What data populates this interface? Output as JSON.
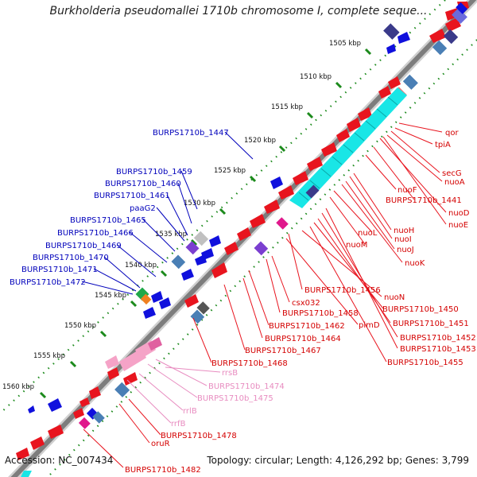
{
  "title": "Burkholderia pseudomallei 1710b chromosome I, complete seque...",
  "accession": "Accession: NC_007434",
  "topology": "Topology: circular; Length: 4,126,292 bp; Genes: 3,799",
  "colors": {
    "forward_gene": "#e8141e",
    "reverse_gene": "#1010dd",
    "rna": "#f5a3c7",
    "cyan_block": "#19e6e6",
    "backbone": "#808080",
    "tick": "#1c8a1c",
    "blue_label": "#0000bb",
    "red_label": "#d40000",
    "pink_label": "#e88cc0"
  },
  "ticks": [
    "1505 kbp",
    "1510 kbp",
    "1515 kbp",
    "1520 kbp",
    "1525 kbp",
    "1530 kbp",
    "1535 kbp",
    "1540 kbp",
    "1545 kbp",
    "1550 kbp",
    "1555 kbp",
    "1560 kbp"
  ],
  "blue_labels": [
    "BURPS1710b_1447",
    "BURPS1710b_1459",
    "BURPS1710b_1460",
    "BURPS1710b_1461",
    "paaG2",
    "BURPS1710b_1465",
    "BURPS1710b_1466",
    "BURPS1710b_1469",
    "BURPS1710b_1470",
    "BURPS1710b_1471",
    "BURPS1710b_1472"
  ],
  "red_labels": [
    "qor",
    "tpiA",
    "secG",
    "nuoA",
    "nuoF",
    "BURPS1710b_1441",
    "nuoD",
    "nuoE",
    "nuoL",
    "nuoH",
    "nuoI",
    "nuoM",
    "nuoJ",
    "nuoK",
    "BURPS1710b_1456",
    "nuoN",
    "csx032",
    "BURPS1710b_1450",
    "BURPS1710b_1458",
    "pimD",
    "BURPS1710b_1451",
    "BURPS1710b_1462",
    "BURPS1710b_1452",
    "BURPS1710b_1464",
    "BURPS1710b_1453",
    "BURPS1710b_1467",
    "BURPS1710b_1455",
    "BURPS1710b_1468",
    "BURPS1710b_1478",
    "oruR",
    "BURPS1710b_1482"
  ],
  "pink_labels": [
    "rrsB",
    "BURPS1710b_1474",
    "BURPS1710b_1475",
    "rrlB",
    "rrfB"
  ]
}
